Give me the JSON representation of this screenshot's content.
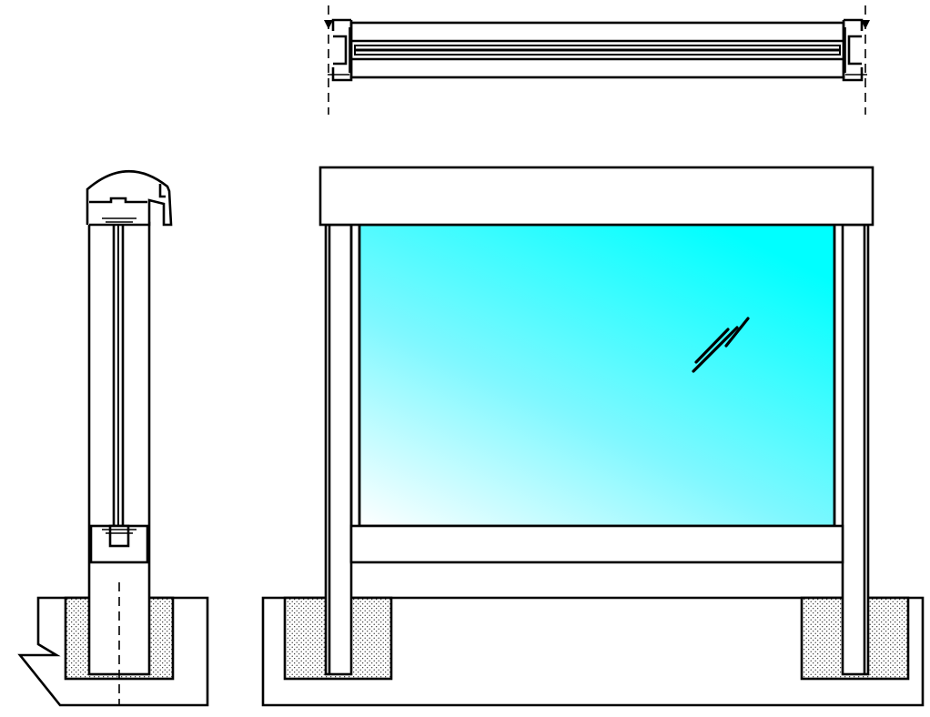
{
  "drawing": {
    "views": [
      "plan-view",
      "side-section-view",
      "front-elevation-view"
    ],
    "colors": {
      "line": "#000000",
      "background": "#ffffff",
      "glass_light": "#ffffff",
      "glass_mid": "#7ff8ff",
      "glass_dark": "#00ffff",
      "concrete_dots": "#000000"
    },
    "materials": {
      "glazing": "gradient-cyan-glass",
      "footing": "stippled-concrete",
      "frame": "white-profile"
    },
    "icons": [
      "glass-reflection-icon"
    ]
  }
}
